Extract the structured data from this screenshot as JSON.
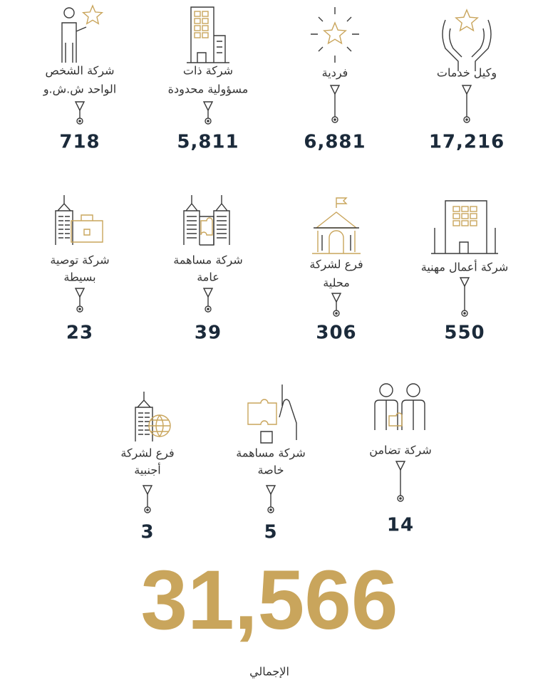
{
  "items": [
    {
      "label": [
        "وكيل خدمات"
      ],
      "value": "17,216"
    },
    {
      "label": [
        "فردية"
      ],
      "value": "6,881"
    },
    {
      "label": [
        "شركة ذات",
        "مسؤولية محدودة"
      ],
      "value": "5,811"
    },
    {
      "label": [
        "شركة الشخص",
        "الواحد ش.ش.و"
      ],
      "value": "718"
    },
    {
      "label": [
        "شركة أعمال مهنية"
      ],
      "value": "550"
    },
    {
      "label": [
        "فرع لشركة",
        "محلية"
      ],
      "value": "306"
    },
    {
      "label": [
        "شركة مساهمة",
        "عامة"
      ],
      "value": "39"
    },
    {
      "label": [
        "شركة توصية",
        "بسيطة"
      ],
      "value": "23"
    },
    {
      "label": [
        "شركة تضامن"
      ],
      "value": "14"
    },
    {
      "label": [
        "شركة مساهمة",
        "خاصة"
      ],
      "value": "5"
    },
    {
      "label": [
        "فرع لشركة",
        "أجنبية"
      ],
      "value": "3"
    }
  ],
  "total": {
    "value": "31,566",
    "label": "الإجمالي"
  }
}
